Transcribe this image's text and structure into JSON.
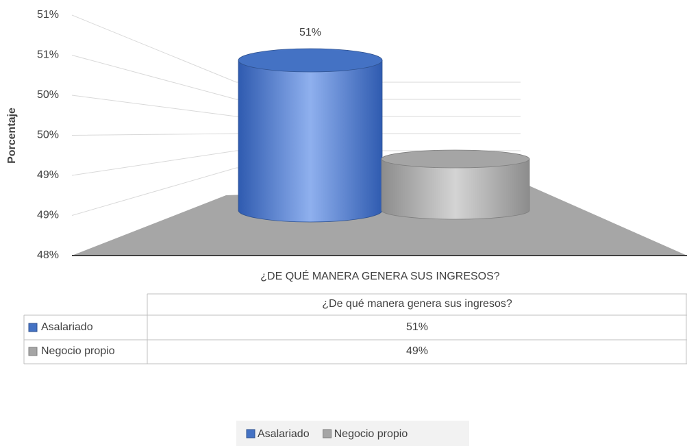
{
  "chart_data": {
    "type": "bar3d",
    "y_axis_label": "Porcentaje",
    "x_axis_label": "¿DE QUÉ MANERA GENERA SUS INGRESOS?",
    "categories": [
      "¿De qué manera genera sus ingresos?"
    ],
    "series": [
      {
        "name": "Asalariado",
        "color": "#4472c4",
        "values": [
          50.8
        ],
        "value_labels": [
          "51%"
        ]
      },
      {
        "name": "Negocio propio",
        "color": "#a5a5a5",
        "values": [
          49.2
        ],
        "value_labels": [
          "49%"
        ]
      }
    ],
    "ylim": [
      48,
      51
    ],
    "yticks": [
      {
        "value": 48,
        "label": "48%"
      },
      {
        "value": 48.5,
        "label": "49%"
      },
      {
        "value": 49,
        "label": "49%"
      },
      {
        "value": 49.5,
        "label": "50%"
      },
      {
        "value": 50,
        "label": "50%"
      },
      {
        "value": 50.5,
        "label": "51%"
      },
      {
        "value": 51,
        "label": "51%"
      }
    ],
    "grid": true,
    "legend": "bottom"
  }
}
